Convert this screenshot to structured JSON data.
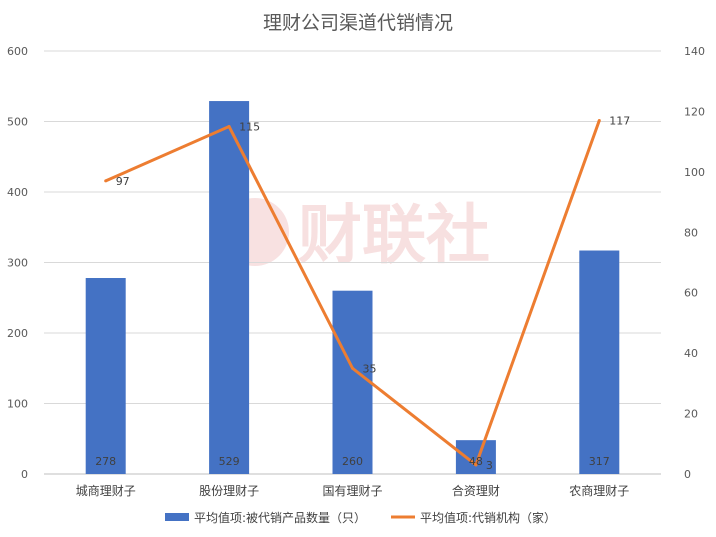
{
  "chart_data": {
    "type": "bar",
    "title": "理财公司渠道代销情况",
    "categories": [
      "城商理财子",
      "股份理财子",
      "国有理财子",
      "合资理财",
      "农商理财子"
    ],
    "series": [
      {
        "name": "平均值项:被代销产品数量（只）",
        "kind": "bar",
        "axis": "left",
        "values": [
          278,
          529,
          260,
          48,
          317
        ],
        "color": "#4472C4"
      },
      {
        "name": "平均值项:代销机构（家）",
        "kind": "line",
        "axis": "right",
        "values": [
          97,
          115,
          35,
          3,
          117
        ],
        "color": "#ED7D31"
      }
    ],
    "y_left": {
      "lim": [
        0,
        600
      ],
      "ticks": [
        "0",
        "100",
        "200",
        "300",
        "400",
        "500",
        "600"
      ]
    },
    "y_right": {
      "lim": [
        0,
        140
      ],
      "ticks": [
        "0",
        "20",
        "40",
        "60",
        "80",
        "100",
        "120",
        "140"
      ]
    },
    "grid": true,
    "legend": "bottom",
    "watermark": "财联社"
  }
}
